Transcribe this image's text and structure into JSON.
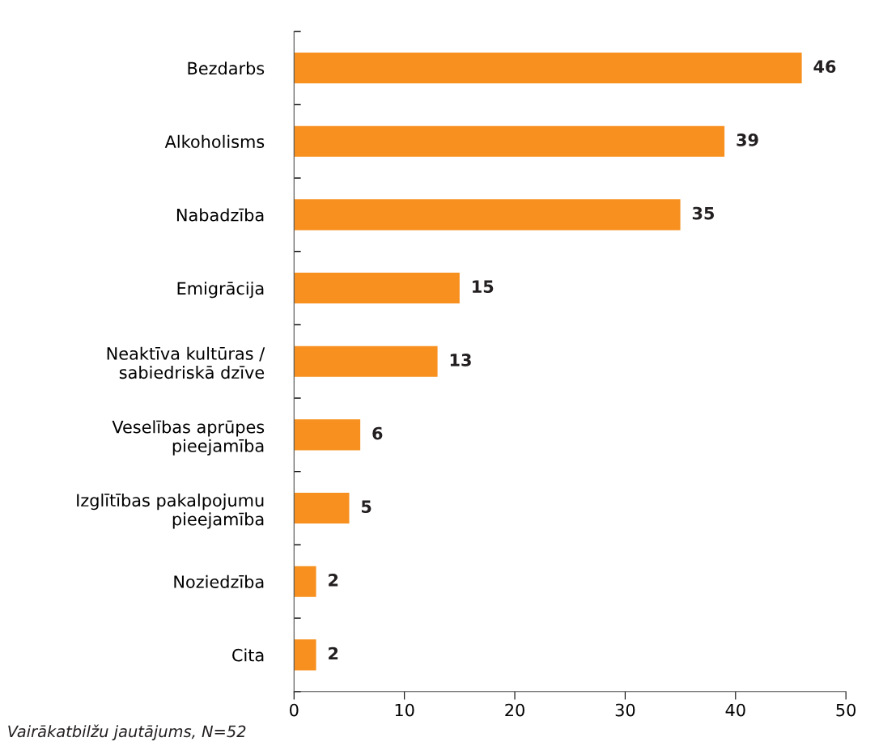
{
  "chart_data": {
    "type": "bar",
    "orientation": "horizontal",
    "categories": [
      "Bezdarbs",
      "Alkoholisms",
      "Nabadzība",
      "Emigrācija",
      "Neaktīva kultūras /\nsabiedriskā dzīve",
      "Veselības aprūpes\npieejamība",
      "Izglītības pakalpojumu\npieejamība",
      "Noziedzība",
      "Cita"
    ],
    "values": [
      46,
      39,
      35,
      15,
      13,
      6,
      5,
      2,
      2
    ],
    "color": "#f7901e",
    "xlim": [
      0,
      50
    ],
    "xticks": [
      0,
      10,
      20,
      30,
      40,
      50
    ],
    "data_labels": true,
    "grid": false,
    "annotations": [
      "Vairākatbilžu jautājums, N=52"
    ]
  }
}
